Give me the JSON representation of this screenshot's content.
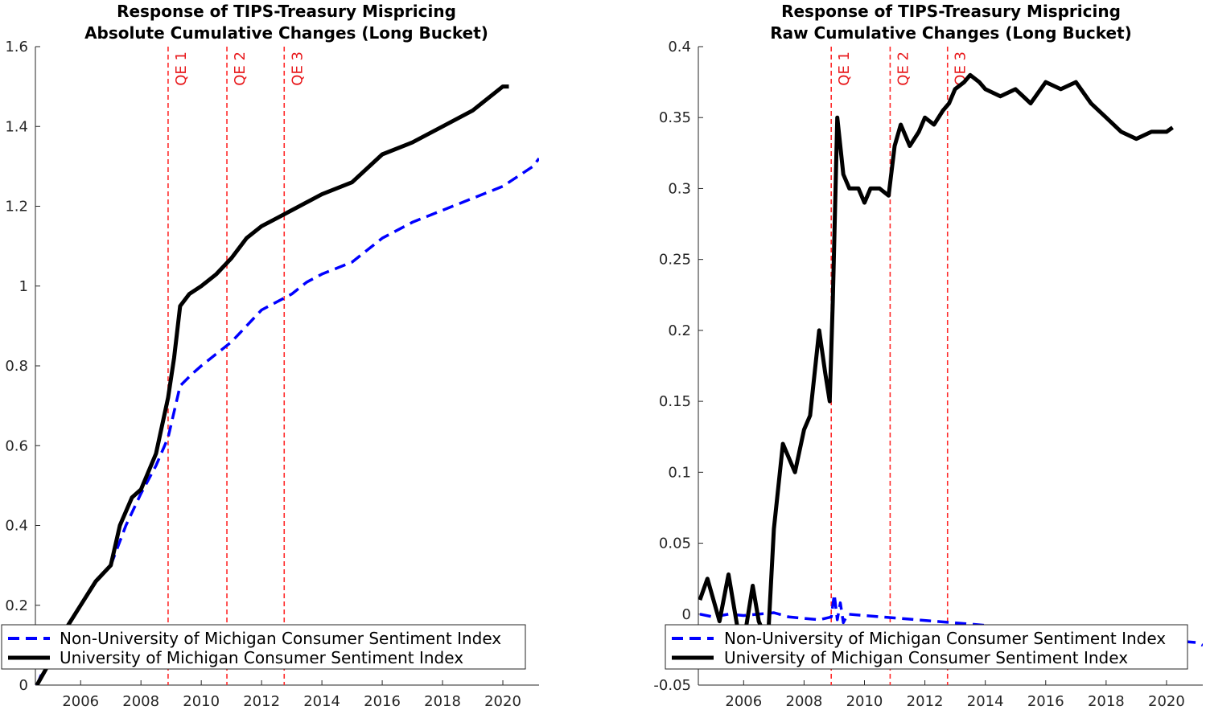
{
  "chart_data": [
    {
      "type": "line",
      "title_line1": "Response of TIPS-Treasury Mispricing",
      "title_line2": "Absolute Cumulative Changes (Long Bucket)",
      "xlabel": "",
      "ylabel": "",
      "xlim": [
        2004.5,
        2021.2
      ],
      "ylim": [
        0,
        1.6
      ],
      "xticks": [
        2006,
        2008,
        2010,
        2012,
        2014,
        2016,
        2018,
        2020
      ],
      "yticks": [
        0,
        0.2,
        0.4,
        0.6,
        0.8,
        1,
        1.2,
        1.4,
        1.6
      ],
      "ytick_labels": [
        "0",
        "0.2",
        "0.4",
        "0.6",
        "0.8",
        "1",
        "1.2",
        "1.4",
        "1.6"
      ],
      "vlines": [
        {
          "label": "QE 1",
          "x": 2008.9
        },
        {
          "label": "QE 2",
          "x": 2010.85
        },
        {
          "label": "QE 3",
          "x": 2012.75
        }
      ],
      "legend_position": "bottom-left",
      "series": [
        {
          "name": "Non-University of Michigan Consumer Sentiment Index",
          "color": "#0000ff",
          "style": "dashed",
          "x": [
            2004.55,
            2005.0,
            2005.5,
            2006.0,
            2006.5,
            2007.0,
            2007.5,
            2008.0,
            2008.5,
            2008.9,
            2009.3,
            2009.7,
            2010.0,
            2010.5,
            2011.0,
            2011.5,
            2012.0,
            2012.5,
            2013.0,
            2013.5,
            2014.0,
            2015.0,
            2016.0,
            2017.0,
            2018.0,
            2019.0,
            2020.0,
            2021.0,
            2021.2
          ],
          "y": [
            0.0,
            0.08,
            0.14,
            0.2,
            0.26,
            0.3,
            0.4,
            0.48,
            0.55,
            0.62,
            0.75,
            0.78,
            0.8,
            0.83,
            0.86,
            0.9,
            0.94,
            0.96,
            0.98,
            1.01,
            1.03,
            1.06,
            1.12,
            1.16,
            1.19,
            1.22,
            1.25,
            1.3,
            1.32
          ]
        },
        {
          "name": "University of Michigan Consumer Sentiment Index",
          "color": "#000000",
          "style": "solid",
          "x": [
            2004.55,
            2005.0,
            2005.5,
            2006.0,
            2006.5,
            2007.0,
            2007.3,
            2007.7,
            2008.0,
            2008.5,
            2008.9,
            2009.1,
            2009.3,
            2009.6,
            2010.0,
            2010.5,
            2011.0,
            2011.5,
            2012.0,
            2012.5,
            2013.0,
            2013.5,
            2014.0,
            2015.0,
            2016.0,
            2017.0,
            2018.0,
            2019.0,
            2020.0,
            2020.2
          ],
          "y": [
            0.0,
            0.06,
            0.14,
            0.2,
            0.26,
            0.3,
            0.4,
            0.47,
            0.49,
            0.58,
            0.72,
            0.82,
            0.95,
            0.98,
            1.0,
            1.03,
            1.07,
            1.12,
            1.15,
            1.17,
            1.19,
            1.21,
            1.23,
            1.26,
            1.33,
            1.36,
            1.4,
            1.44,
            1.5,
            1.5
          ]
        }
      ]
    },
    {
      "type": "line",
      "title_line1": "Response of TIPS-Treasury Mispricing",
      "title_line2": "Raw Cumulative Changes (Long Bucket)",
      "xlabel": "",
      "ylabel": "",
      "xlim": [
        2004.5,
        2021.2
      ],
      "ylim": [
        -0.05,
        0.4
      ],
      "xticks": [
        2006,
        2008,
        2010,
        2012,
        2014,
        2016,
        2018,
        2020
      ],
      "yticks": [
        -0.05,
        0,
        0.05,
        0.1,
        0.15,
        0.2,
        0.25,
        0.3,
        0.35,
        0.4
      ],
      "ytick_labels": [
        "-0.05",
        "0",
        "0.05",
        "0.1",
        "0.15",
        "0.2",
        "0.25",
        "0.3",
        "0.35",
        "0.4"
      ],
      "vlines": [
        {
          "label": "QE 1",
          "x": 2008.9
        },
        {
          "label": "QE 2",
          "x": 2010.85
        },
        {
          "label": "QE 3",
          "x": 2012.75
        }
      ],
      "legend_position": "bottom-left",
      "series": [
        {
          "name": "Non-University of Michigan Consumer Sentiment Index",
          "color": "#0000ff",
          "style": "dashed",
          "x": [
            2004.55,
            2005.0,
            2005.5,
            2006.0,
            2006.5,
            2007.0,
            2007.5,
            2008.0,
            2008.5,
            2008.9,
            2009.0,
            2009.1,
            2009.2,
            2009.3,
            2009.45,
            2021.0,
            2021.2
          ],
          "y": [
            0.0,
            -0.002,
            0.0,
            -0.001,
            0.0,
            0.001,
            -0.002,
            -0.003,
            -0.004,
            -0.002,
            0.014,
            -0.004,
            0.008,
            -0.006,
            0.0,
            -0.02,
            -0.022
          ]
        },
        {
          "name": "University of Michigan Consumer Sentiment Index",
          "color": "#000000",
          "style": "solid",
          "x": [
            2004.55,
            2004.8,
            2005.0,
            2005.2,
            2005.5,
            2005.8,
            2006.0,
            2006.3,
            2006.5,
            2006.8,
            2007.0,
            2007.3,
            2007.5,
            2007.7,
            2008.0,
            2008.2,
            2008.5,
            2008.7,
            2008.85,
            2008.95,
            2009.1,
            2009.3,
            2009.5,
            2009.8,
            2010.0,
            2010.2,
            2010.5,
            2010.8,
            2011.0,
            2011.2,
            2011.5,
            2011.8,
            2012.0,
            2012.3,
            2012.6,
            2012.8,
            2013.0,
            2013.3,
            2013.5,
            2013.8,
            2014.0,
            2014.5,
            2015.0,
            2015.5,
            2016.0,
            2016.5,
            2017.0,
            2017.5,
            2018.0,
            2018.5,
            2019.0,
            2019.5,
            2020.0,
            2020.2
          ],
          "y": [
            0.01,
            0.025,
            0.01,
            -0.005,
            0.028,
            -0.01,
            -0.02,
            0.02,
            -0.005,
            -0.02,
            0.06,
            0.12,
            0.11,
            0.1,
            0.13,
            0.14,
            0.2,
            0.17,
            0.15,
            0.22,
            0.35,
            0.31,
            0.3,
            0.3,
            0.29,
            0.3,
            0.3,
            0.295,
            0.33,
            0.345,
            0.33,
            0.34,
            0.35,
            0.345,
            0.355,
            0.36,
            0.37,
            0.375,
            0.38,
            0.375,
            0.37,
            0.365,
            0.37,
            0.36,
            0.375,
            0.37,
            0.375,
            0.36,
            0.35,
            0.34,
            0.335,
            0.34,
            0.34,
            0.343
          ]
        }
      ]
    }
  ]
}
